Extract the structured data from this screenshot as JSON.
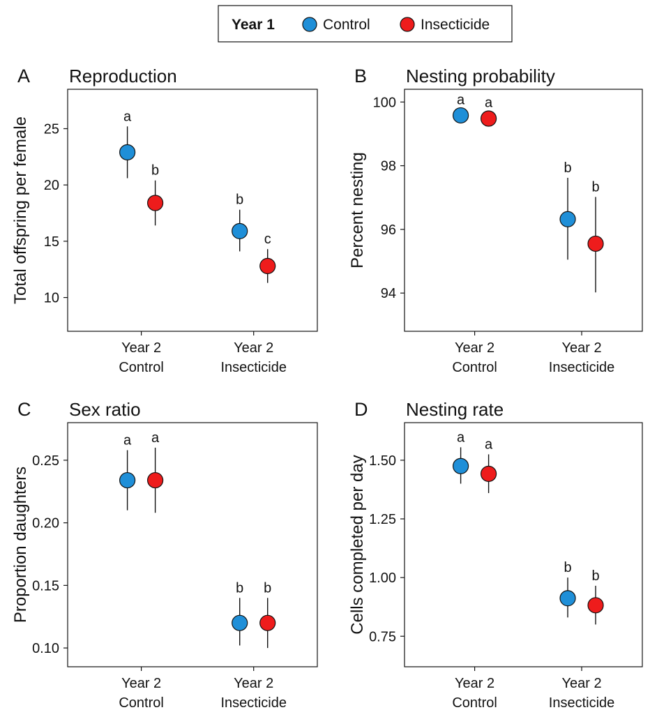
{
  "legend": {
    "title": "Year 1",
    "items": [
      {
        "label": "Control",
        "color": "#1f8fd8"
      },
      {
        "label": "Insecticide",
        "color": "#ee1c1c"
      }
    ]
  },
  "chart_data": [
    {
      "type": "scatter",
      "panel_label": "A",
      "title": "Reproduction",
      "xlabel": "",
      "ylabel": "Total offspring per female",
      "categories": [
        "Year 2\nControl",
        "Year 2\nInsecticide"
      ],
      "ylim": [
        7,
        28.5
      ],
      "yticks": [
        10,
        15,
        20,
        25
      ],
      "ytick_labels": [
        "10",
        "15",
        "20",
        "25"
      ],
      "grid": false,
      "series": [
        {
          "name": "Control",
          "values": [
            22.9,
            15.9
          ],
          "lower": [
            20.6,
            14.1
          ],
          "upper": [
            25.2,
            17.8
          ],
          "letters": [
            "a",
            "b"
          ]
        },
        {
          "name": "Insecticide",
          "values": [
            18.4,
            12.8
          ],
          "lower": [
            16.4,
            11.3
          ],
          "upper": [
            20.4,
            14.3
          ],
          "letters": [
            "b",
            "c"
          ]
        }
      ]
    },
    {
      "type": "scatter",
      "panel_label": "B",
      "title": "Nesting probability",
      "xlabel": "",
      "ylabel": "Percent nesting",
      "categories": [
        "Year 2\nControl",
        "Year 2\nInsecticide"
      ],
      "ylim": [
        92.8,
        100.4
      ],
      "yticks": [
        94,
        96,
        98,
        100
      ],
      "ytick_labels": [
        "94",
        "96",
        "98",
        "100"
      ],
      "grid": false,
      "series": [
        {
          "name": "Control",
          "values": [
            99.58,
            96.32
          ],
          "lower": [
            99.4,
            95.05
          ],
          "upper": [
            99.75,
            97.62
          ],
          "letters": [
            "a",
            "b"
          ]
        },
        {
          "name": "Insecticide",
          "values": [
            99.48,
            95.55
          ],
          "lower": [
            99.3,
            94.02
          ],
          "upper": [
            99.67,
            97.02
          ],
          "letters": [
            "a",
            "b"
          ]
        }
      ]
    },
    {
      "type": "scatter",
      "panel_label": "C",
      "title": "Sex ratio",
      "xlabel": "",
      "ylabel": "Proportion daughters",
      "categories": [
        "Year 2\nControl",
        "Year 2\nInsecticide"
      ],
      "ylim": [
        0.085,
        0.28
      ],
      "yticks": [
        0.1,
        0.15,
        0.2,
        0.25
      ],
      "ytick_labels": [
        "0.10",
        "0.15",
        "0.20",
        "0.25"
      ],
      "grid": false,
      "series": [
        {
          "name": "Control",
          "values": [
            0.234,
            0.12
          ],
          "lower": [
            0.21,
            0.102
          ],
          "upper": [
            0.258,
            0.14
          ],
          "letters": [
            "a",
            "b"
          ]
        },
        {
          "name": "Insecticide",
          "values": [
            0.234,
            0.12
          ],
          "lower": [
            0.208,
            0.1
          ],
          "upper": [
            0.26,
            0.14
          ],
          "letters": [
            "a",
            "b"
          ]
        }
      ]
    },
    {
      "type": "scatter",
      "panel_label": "D",
      "title": "Nesting rate",
      "xlabel": "",
      "ylabel": "Cells completed per day",
      "categories": [
        "Year 2\nControl",
        "Year 2\nInsecticide"
      ],
      "ylim": [
        0.62,
        1.66
      ],
      "yticks": [
        0.75,
        1.0,
        1.25,
        1.5
      ],
      "ytick_labels": [
        "0.75",
        "1.00",
        "1.25",
        "1.50"
      ],
      "grid": false,
      "series": [
        {
          "name": "Control",
          "values": [
            1.475,
            0.912
          ],
          "lower": [
            1.4,
            0.83
          ],
          "upper": [
            1.555,
            1.0
          ],
          "letters": [
            "a",
            "b"
          ]
        },
        {
          "name": "Insecticide",
          "values": [
            1.442,
            0.882
          ],
          "lower": [
            1.36,
            0.8
          ],
          "upper": [
            1.525,
            0.965
          ],
          "letters": [
            "a",
            "b"
          ]
        }
      ]
    }
  ]
}
